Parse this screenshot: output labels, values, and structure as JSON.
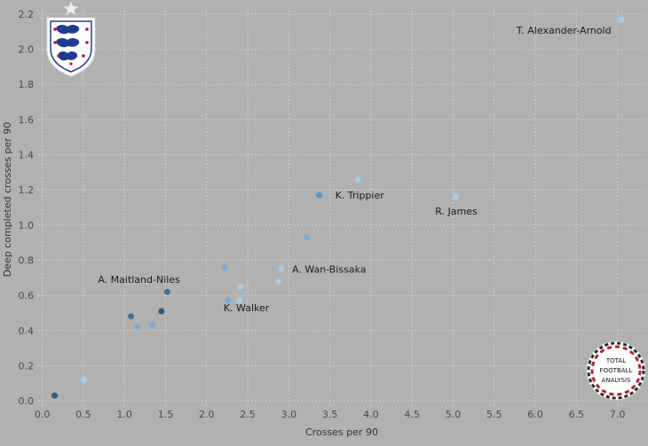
{
  "chart_data": {
    "type": "scatter",
    "title": "",
    "xlabel": "Crosses per 90",
    "ylabel": "Deep completed crosses per 90",
    "xlim": [
      -0.05,
      7.35
    ],
    "ylim": [
      -0.04,
      2.24
    ],
    "x_ticks": [
      "0.0",
      "0.5",
      "1.0",
      "1.5",
      "2.0",
      "2.5",
      "3.0",
      "3.5",
      "4.0",
      "4.5",
      "5.0",
      "5.5",
      "6.0",
      "6.5",
      "7.0"
    ],
    "y_ticks": [
      "0.0",
      "0.2",
      "0.4",
      "0.6",
      "0.8",
      "1.0",
      "1.2",
      "1.4",
      "1.6",
      "1.8",
      "2.0",
      "2.2"
    ],
    "grid": true,
    "colors": {
      "background": "#b1b1b1",
      "grid": "#d0d0d0",
      "dark_point": "#2b5478",
      "mid_point": "#5b8fbd",
      "light_point": "#a9cbe6"
    },
    "points": [
      {
        "x": 7.05,
        "y": 2.17,
        "color": "#a9cbe6",
        "label": "T. Alexander-Arnold"
      },
      {
        "x": 3.84,
        "y": 1.26,
        "color": "#a9cbe6",
        "label": ""
      },
      {
        "x": 3.37,
        "y": 1.17,
        "color": "#5b8fbd",
        "label": "K. Trippier"
      },
      {
        "x": 5.03,
        "y": 1.16,
        "color": "#a9cbe6",
        "label": "R. James"
      },
      {
        "x": 3.22,
        "y": 0.93,
        "color": "#7aaad4",
        "label": ""
      },
      {
        "x": 2.22,
        "y": 0.76,
        "color": "#7aaad4",
        "label": ""
      },
      {
        "x": 2.91,
        "y": 0.75,
        "color": "#a9cbe6",
        "label": "A. Wan-Bissaka"
      },
      {
        "x": 2.88,
        "y": 0.68,
        "color": "#a9cbe6",
        "label": ""
      },
      {
        "x": 2.41,
        "y": 0.65,
        "color": "#a9cbe6",
        "label": ""
      },
      {
        "x": 1.52,
        "y": 0.62,
        "color": "#3d6f9c",
        "label": "A. Maitland-Niles"
      },
      {
        "x": 2.26,
        "y": 0.57,
        "color": "#7aaad4",
        "label": "K. Walker"
      },
      {
        "x": 2.4,
        "y": 0.57,
        "color": "#a9cbe6",
        "label": ""
      },
      {
        "x": 1.45,
        "y": 0.51,
        "color": "#2b5478",
        "label": ""
      },
      {
        "x": 1.08,
        "y": 0.48,
        "color": "#3d6f9c",
        "label": ""
      },
      {
        "x": 1.16,
        "y": 0.42,
        "color": "#7aaad4",
        "label": ""
      },
      {
        "x": 1.34,
        "y": 0.43,
        "color": "#7aaad4",
        "label": ""
      },
      {
        "x": 0.51,
        "y": 0.12,
        "color": "#a9cbe6",
        "label": ""
      },
      {
        "x": 0.15,
        "y": 0.03,
        "color": "#2b5478",
        "label": ""
      }
    ]
  },
  "logos": {
    "badge_icon": "three-lions-crest-icon",
    "star_icon": "star-icon",
    "analysis_logo_icon": "total-football-analysis-logo-icon",
    "analysis_logo_text": "TOTAL FOOTBALL ANALYSIS"
  }
}
